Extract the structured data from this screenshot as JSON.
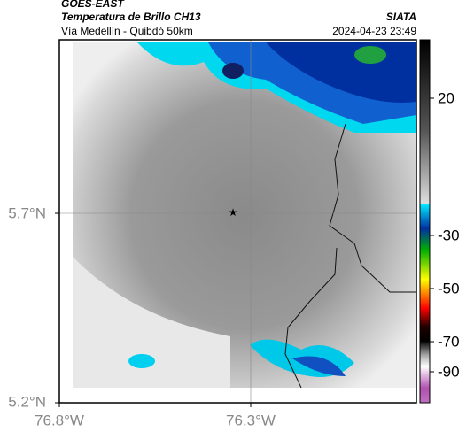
{
  "header": {
    "source": "GOES-EAST",
    "product": "Temperatura de Brillo CH13",
    "region": "Vía Medellín - Quibdó 50km",
    "agency": "SIATA",
    "timestamp": "2024-04-23 23:49"
  },
  "map": {
    "lat_labels": [
      "5.7°N",
      "5.2°N"
    ],
    "lon_labels": [
      "76.8°W",
      "76.3°W"
    ]
  },
  "colorbar": {
    "ticks": [
      20,
      -30,
      -50,
      -70,
      -90
    ]
  }
}
